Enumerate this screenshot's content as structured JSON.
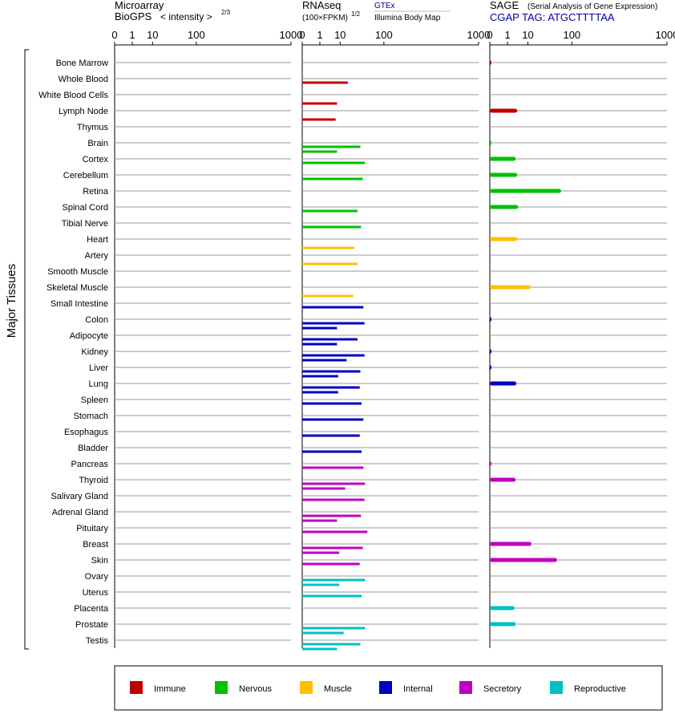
{
  "panels": {
    "microarray": {
      "title_line1": "Microarray",
      "title_line2": "BioGPS",
      "intensity_label": "< intensity >",
      "intensity_exp": "2/3"
    },
    "rnaseq": {
      "title_line1": "RNAseq",
      "title_line2": "(100×FPKM)",
      "title_exp": "1/2",
      "source_top": "GTEx",
      "source_bottom": "Illumina Body Map"
    },
    "sage": {
      "title": "SAGE",
      "subtitle": "(Serial Analysis of Gene Expression)",
      "tag_label": "CGAP TAG: ATGCTTTTAA"
    }
  },
  "y_group_label": "Major Tissues",
  "ticks": [
    "0",
    "1",
    "10",
    "100",
    "1000"
  ],
  "legend": [
    {
      "label": "Immune",
      "color": "#c00000"
    },
    {
      "label": "Nervous",
      "color": "#00c000"
    },
    {
      "label": "Muscle",
      "color": "#ffc000"
    },
    {
      "label": "Internal",
      "color": "#0000c0"
    },
    {
      "label": "Secretory",
      "color": "#c000c0"
    },
    {
      "label": "Reproductive",
      "color": "#00c0c0"
    }
  ],
  "chart_data": {
    "type": "bar",
    "orientation": "horizontal",
    "x_scale": "cube-root-like (0,1,10,100,1000)",
    "xlim": [
      0,
      1000
    ],
    "tissues": [
      "Bone Marrow",
      "Whole Blood",
      "White Blood Cells",
      "Lymph Node",
      "Thymus",
      "Brain",
      "Cortex",
      "Cerebellum",
      "Retina",
      "Spinal Cord",
      "Tibial Nerve",
      "Heart",
      "Artery",
      "Smooth Muscle",
      "Skeletal Muscle",
      "Small Intestine",
      "Colon",
      "Adipocyte",
      "Kidney",
      "Liver",
      "Lung",
      "Spleen",
      "Stomach",
      "Esophagus",
      "Bladder",
      "Pancreas",
      "Thyroid",
      "Salivary Gland",
      "Adrenal Gland",
      "Pituitary",
      "Breast",
      "Skin",
      "Ovary",
      "Uterus",
      "Placenta",
      "Prostate",
      "Testis"
    ],
    "system": [
      "Immune",
      "Immune",
      "Immune",
      "Immune",
      "Immune",
      "Nervous",
      "Nervous",
      "Nervous",
      "Nervous",
      "Nervous",
      "Nervous",
      "Muscle",
      "Muscle",
      "Muscle",
      "Muscle",
      "Internal",
      "Internal",
      "Internal",
      "Internal",
      "Internal",
      "Internal",
      "Internal",
      "Internal",
      "Internal",
      "Internal",
      "Secretory",
      "Secretory",
      "Secretory",
      "Secretory",
      "Secretory",
      "Secretory",
      "Secretory",
      "Reproductive",
      "Reproductive",
      "Reproductive",
      "Reproductive",
      "Reproductive"
    ],
    "series": [
      {
        "name": "GTEx",
        "values": [
          null,
          15,
          null,
          null,
          null,
          29,
          37,
          33,
          null,
          25,
          30,
          null,
          null,
          null,
          null,
          34,
          36,
          25,
          36,
          29,
          28,
          31,
          34,
          28,
          31,
          34,
          37,
          36,
          30,
          42,
          33,
          28,
          37,
          31,
          null,
          37,
          29
        ]
      },
      {
        "name": "Illumina Body Map",
        "values": [
          null,
          null,
          7,
          6,
          null,
          7,
          null,
          null,
          null,
          null,
          null,
          21,
          25,
          null,
          20,
          null,
          7,
          7,
          14,
          8,
          8,
          null,
          null,
          null,
          null,
          null,
          13,
          null,
          7,
          null,
          9,
          null,
          9,
          null,
          null,
          12,
          7
        ]
      },
      {
        "name": "SAGE",
        "values": [
          0.01,
          null,
          null,
          3.0,
          null,
          0.01,
          2.5,
          3.0,
          57,
          3.3,
          null,
          3.0,
          null,
          null,
          11.5,
          null,
          0.01,
          null,
          0.01,
          0.01,
          2.7,
          null,
          null,
          null,
          null,
          0.01,
          2.5,
          null,
          null,
          null,
          12,
          46,
          null,
          null,
          2.2,
          2.5,
          null
        ]
      }
    ]
  }
}
